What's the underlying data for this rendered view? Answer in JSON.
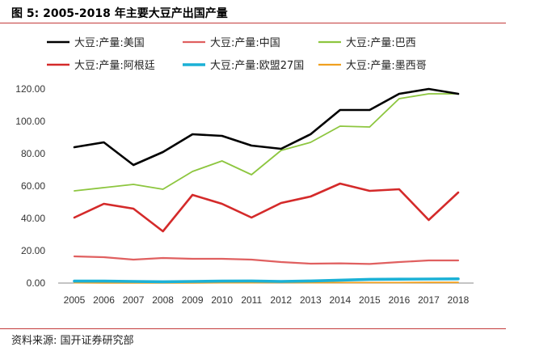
{
  "chart_data": {
    "type": "line",
    "title": "图 5:  2005-2018 年主要大豆产出国产量",
    "xlabel": "",
    "ylabel": "",
    "ylim": [
      0,
      120
    ],
    "y_tick_labels": [
      "0.00",
      "20.00",
      "40.00",
      "60.00",
      "80.00",
      "100.00",
      "120.00"
    ],
    "grid": false,
    "legend_position": "top",
    "x": [
      "2005",
      "2006",
      "2007",
      "2008",
      "2009",
      "2010",
      "2011",
      "2012",
      "2013",
      "2014",
      "2015",
      "2016",
      "2017",
      "2018"
    ],
    "series": [
      {
        "name": "大豆:产量:美国",
        "color": "#000000",
        "width": 2.6,
        "values": [
          84,
          87,
          73,
          81,
          92,
          91,
          85,
          83,
          92,
          107,
          107,
          117,
          120,
          117
        ]
      },
      {
        "name": "大豆:产量:中国",
        "color": "#e06060",
        "width": 2.2,
        "values": [
          16.5,
          16,
          14.5,
          15.5,
          15,
          15,
          14.5,
          13,
          12,
          12.2,
          11.8,
          13,
          14,
          14
        ]
      },
      {
        "name": "大豆:产量:巴西",
        "color": "#8dc63f",
        "width": 1.8,
        "values": [
          57,
          59,
          61,
          58,
          69,
          75.5,
          67,
          82,
          87,
          97,
          96.5,
          114,
          117,
          117
        ]
      },
      {
        "name": "大豆:产量:阿根廷",
        "color": "#d42a2a",
        "width": 2.6,
        "values": [
          40.5,
          49,
          46,
          32,
          54.5,
          49,
          40.5,
          49.5,
          53.5,
          61.5,
          57,
          58,
          39,
          56
        ]
      },
      {
        "name": "大豆:产量:欧盟27国",
        "color": "#1bb1d6",
        "width": 3.6,
        "values": [
          1.2,
          1.2,
          1,
          0.8,
          1,
          1.2,
          1.3,
          1,
          1.3,
          1.8,
          2.3,
          2.4,
          2.5,
          2.6
        ]
      },
      {
        "name": "大豆:产量:墨西哥",
        "color": "#f0a020",
        "width": 1.8,
        "values": [
          0.2,
          0.1,
          0.1,
          0.1,
          0.1,
          0.2,
          0.2,
          0.3,
          0.2,
          0.3,
          0.3,
          0.3,
          0.4,
          0.4
        ]
      }
    ]
  },
  "source": "资料来源: 国开证券研究部"
}
